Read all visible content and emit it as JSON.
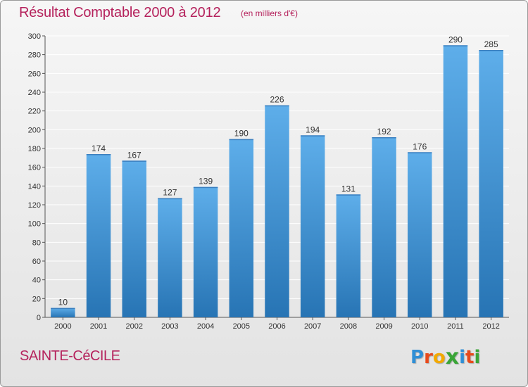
{
  "header": {
    "title": "Résultat Comptable 2000 à 2012",
    "subtitle": "(en milliers d'€)"
  },
  "footer": {
    "town": "SAINTE-CéCILE",
    "logo_letters": [
      "P",
      "r",
      "o",
      "x",
      "i",
      "t",
      "i"
    ],
    "logo_colors": [
      "#2f8fd6",
      "#e84a1b",
      "#f2a900",
      "#3aa537",
      "#2f8fd6",
      "#e84a1b",
      "#3aa537"
    ]
  },
  "colors": {
    "bar_top": "#5eaeea",
    "bar_bottom": "#2774b4",
    "title": "#b5225c",
    "grid": "#ffffff"
  },
  "chart_data": {
    "type": "bar",
    "title": "Résultat Comptable 2000 à 2012",
    "subtitle": "(en milliers d'€)",
    "categories": [
      "2000",
      "2001",
      "2002",
      "2003",
      "2004",
      "2005",
      "2006",
      "2007",
      "2008",
      "2009",
      "2010",
      "2011",
      "2012"
    ],
    "values": [
      10,
      174,
      167,
      127,
      139,
      190,
      226,
      194,
      131,
      192,
      176,
      290,
      285
    ],
    "ylim": [
      0,
      300
    ],
    "ytick_step": 20,
    "grid": true,
    "xlabel": "",
    "ylabel": ""
  }
}
